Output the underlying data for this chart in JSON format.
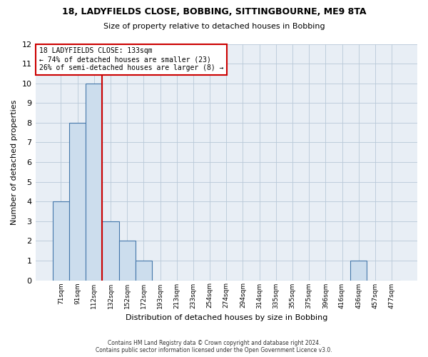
{
  "title1": "18, LADYFIELDS CLOSE, BOBBING, SITTINGBOURNE, ME9 8TA",
  "title2": "Size of property relative to detached houses in Bobbing",
  "xlabel": "Distribution of detached houses by size in Bobbing",
  "ylabel": "Number of detached properties",
  "footer1": "Contains HM Land Registry data © Crown copyright and database right 2024.",
  "footer2": "Contains public sector information licensed under the Open Government Licence v3.0.",
  "annotation_line1": "18 LADYFIELDS CLOSE: 133sqm",
  "annotation_line2": "← 74% of detached houses are smaller (23)",
  "annotation_line3": "26% of semi-detached houses are larger (8) →",
  "bin_labels": [
    "71sqm",
    "91sqm",
    "112sqm",
    "132sqm",
    "152sqm",
    "172sqm",
    "193sqm",
    "213sqm",
    "233sqm",
    "254sqm",
    "274sqm",
    "294sqm",
    "314sqm",
    "335sqm",
    "355sqm",
    "375sqm",
    "396sqm",
    "416sqm",
    "436sqm",
    "457sqm",
    "477sqm"
  ],
  "bar_values": [
    4,
    8,
    10,
    3,
    2,
    1,
    0,
    0,
    0,
    0,
    0,
    0,
    0,
    0,
    0,
    0,
    0,
    0,
    1,
    0,
    0
  ],
  "bar_color": "#ccdded",
  "bar_edge_color": "#4477aa",
  "reference_line_x": 2.5,
  "reference_line_color": "#cc0000",
  "annotation_box_color": "#cc0000",
  "ylim": [
    0,
    12
  ],
  "yticks": [
    0,
    1,
    2,
    3,
    4,
    5,
    6,
    7,
    8,
    9,
    10,
    11,
    12
  ],
  "background_color": "#e8eef5",
  "grid_color": "#b8c8d8"
}
